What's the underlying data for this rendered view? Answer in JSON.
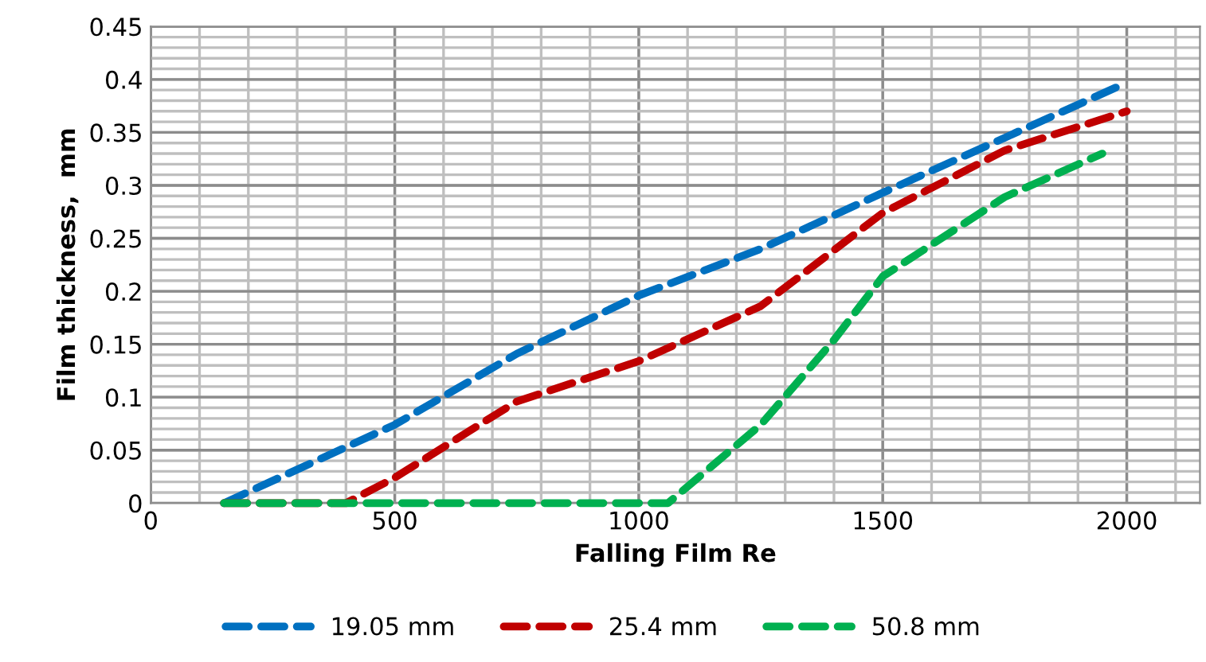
{
  "chart_data": {
    "type": "line",
    "xlabel": "Falling Film Re",
    "ylabel": "Film thickness,  mm",
    "xlim": [
      0,
      2150
    ],
    "xticks": [
      0,
      500,
      1000,
      1500,
      2000
    ],
    "ylim": [
      0,
      0.45
    ],
    "yticks": [
      0,
      0.05,
      0.1,
      0.15,
      0.2,
      0.25,
      0.3,
      0.35,
      0.4,
      0.45
    ],
    "grid": true,
    "legend": "bottom",
    "line_style": "dashed",
    "marker": "none",
    "series": [
      {
        "name": "19.05 mm",
        "color": "#0070c0",
        "x": [
          150,
          500,
          750,
          1000,
          1250,
          1500,
          1750,
          2000
        ],
        "values": [
          0,
          0.074,
          0.141,
          0.196,
          0.24,
          0.293,
          0.345,
          0.397
        ]
      },
      {
        "name": "25.4 mm",
        "color": "#c00000",
        "x": [
          150,
          400,
          500,
          750,
          1000,
          1250,
          1500,
          1750,
          2000
        ],
        "values": [
          0,
          0,
          0.024,
          0.096,
          0.134,
          0.186,
          0.274,
          0.333,
          0.37
        ]
      },
      {
        "name": "50.8 mm",
        "color": "#00b050",
        "x": [
          150,
          1060,
          1250,
          1400,
          1500,
          1750,
          1950
        ],
        "values": [
          0,
          0,
          0.074,
          0.154,
          0.214,
          0.289,
          0.33
        ]
      }
    ]
  }
}
